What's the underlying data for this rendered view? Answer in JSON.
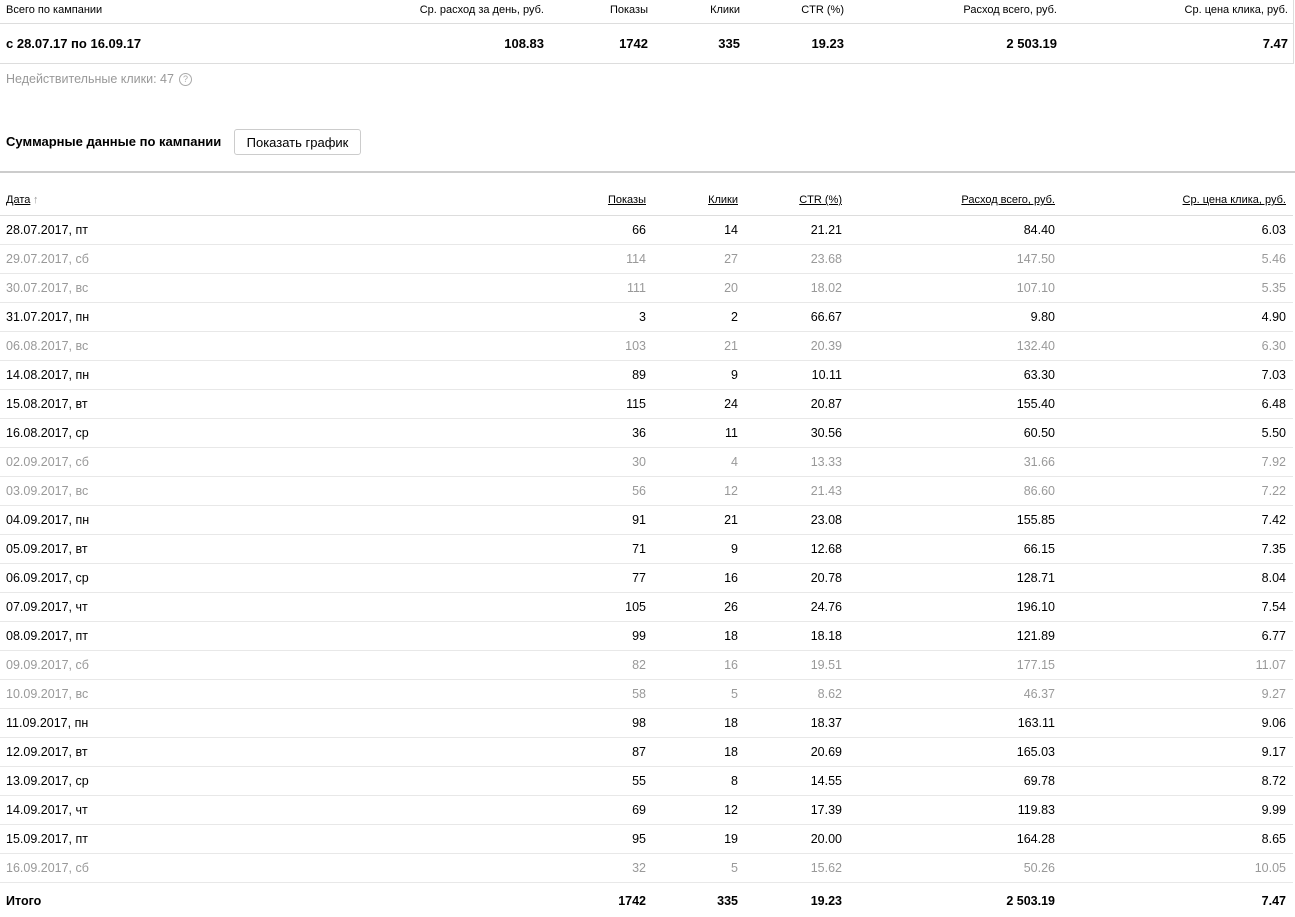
{
  "summary": {
    "headers": [
      "Всего по кампании",
      "Ср. расход за день, руб.",
      "Показы",
      "Клики",
      "CTR (%)",
      "Расход всего, руб.",
      "Ср. цена клика, руб."
    ],
    "values": [
      "с 28.07.17 по 16.09.17",
      "108.83",
      "1742",
      "335",
      "19.23",
      "2 503.19",
      "7.47"
    ]
  },
  "invalid_clicks": "Недействительные клики: 47",
  "help_icon": "?",
  "section_title": "Суммарные данные по кампании",
  "show_chart_button": "Показать график",
  "table": {
    "headers": [
      "Дата",
      "Показы",
      "Клики",
      "CTR (%)",
      "Расход всего, руб.",
      "Ср. цена клика, руб."
    ],
    "sort_indicator": "↑",
    "rows": [
      [
        "28.07.2017, пт",
        "66",
        "14",
        "21.21",
        "84.40",
        "6.03"
      ],
      [
        "29.07.2017, сб",
        "114",
        "27",
        "23.68",
        "147.50",
        "5.46"
      ],
      [
        "30.07.2017, вс",
        "111",
        "20",
        "18.02",
        "107.10",
        "5.35"
      ],
      [
        "31.07.2017, пн",
        "3",
        "2",
        "66.67",
        "9.80",
        "4.90"
      ],
      [
        "06.08.2017, вс",
        "103",
        "21",
        "20.39",
        "132.40",
        "6.30"
      ],
      [
        "14.08.2017, пн",
        "89",
        "9",
        "10.11",
        "63.30",
        "7.03"
      ],
      [
        "15.08.2017, вт",
        "115",
        "24",
        "20.87",
        "155.40",
        "6.48"
      ],
      [
        "16.08.2017, ср",
        "36",
        "11",
        "30.56",
        "60.50",
        "5.50"
      ],
      [
        "02.09.2017, сб",
        "30",
        "4",
        "13.33",
        "31.66",
        "7.92"
      ],
      [
        "03.09.2017, вс",
        "56",
        "12",
        "21.43",
        "86.60",
        "7.22"
      ],
      [
        "04.09.2017, пн",
        "91",
        "21",
        "23.08",
        "155.85",
        "7.42"
      ],
      [
        "05.09.2017, вт",
        "71",
        "9",
        "12.68",
        "66.15",
        "7.35"
      ],
      [
        "06.09.2017, ср",
        "77",
        "16",
        "20.78",
        "128.71",
        "8.04"
      ],
      [
        "07.09.2017, чт",
        "105",
        "26",
        "24.76",
        "196.10",
        "7.54"
      ],
      [
        "08.09.2017, пт",
        "99",
        "18",
        "18.18",
        "121.89",
        "6.77"
      ],
      [
        "09.09.2017, сб",
        "82",
        "16",
        "19.51",
        "177.15",
        "11.07"
      ],
      [
        "10.09.2017, вс",
        "58",
        "5",
        "8.62",
        "46.37",
        "9.27"
      ],
      [
        "11.09.2017, пн",
        "98",
        "18",
        "18.37",
        "163.11",
        "9.06"
      ],
      [
        "12.09.2017, вт",
        "87",
        "18",
        "20.69",
        "165.03",
        "9.17"
      ],
      [
        "13.09.2017, ср",
        "55",
        "8",
        "14.55",
        "69.78",
        "8.72"
      ],
      [
        "14.09.2017, чт",
        "69",
        "12",
        "17.39",
        "119.83",
        "9.99"
      ],
      [
        "15.09.2017, пт",
        "95",
        "19",
        "20.00",
        "164.28",
        "8.65"
      ],
      [
        "16.09.2017, сб",
        "32",
        "5",
        "15.62",
        "50.26",
        "10.05"
      ]
    ],
    "total": [
      "Итого",
      "1742",
      "335",
      "19.23",
      "2 503.19",
      "7.47"
    ]
  },
  "colors": {
    "muted_row": "#999999",
    "text": "#000000"
  }
}
